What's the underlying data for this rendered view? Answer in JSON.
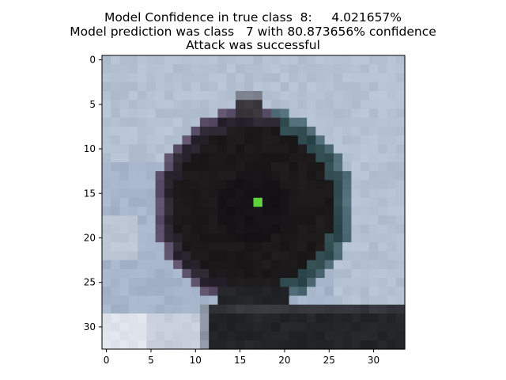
{
  "title_lines": [
    "Model Confidence in true class  8:     4.021657%",
    "Model prediction was class   7 with 80.873656% confidence",
    "Attack was successful"
  ],
  "chart_data": {
    "type": "heatmap",
    "title": "Model Confidence in true class  8:     4.021657%\nModel prediction was class   7 with 80.873656% confidence\nAttack was successful",
    "xlabel": "",
    "ylabel": "",
    "xlim": [
      -0.5,
      33.5
    ],
    "ylim": [
      32.5,
      -0.5
    ],
    "x_ticks": [
      0,
      5,
      10,
      15,
      20,
      25,
      30
    ],
    "y_ticks": [
      0,
      5,
      10,
      15,
      20,
      25,
      30
    ],
    "grid": false,
    "image_size": [
      33,
      34
    ],
    "content": "adversarial image of a dark circular road sign on a pale blue-grey background with a single perturbed bright green pixel",
    "perturbed_pixel": {
      "row": 16,
      "col": 17,
      "color": "#5fd23c"
    },
    "colors": {
      "background": "#a6b5c9",
      "background_light": "#b3c1d2",
      "sign": "#1c191b",
      "sign_dark": "#151316",
      "sign_edge_teal": "#2f4a4e",
      "sign_edge_purple": "#5b4f6a",
      "post": "#232427",
      "post_light": "#34363b",
      "bottom_left": "#dfe3ea",
      "perturbed": "#5fd23c"
    }
  }
}
